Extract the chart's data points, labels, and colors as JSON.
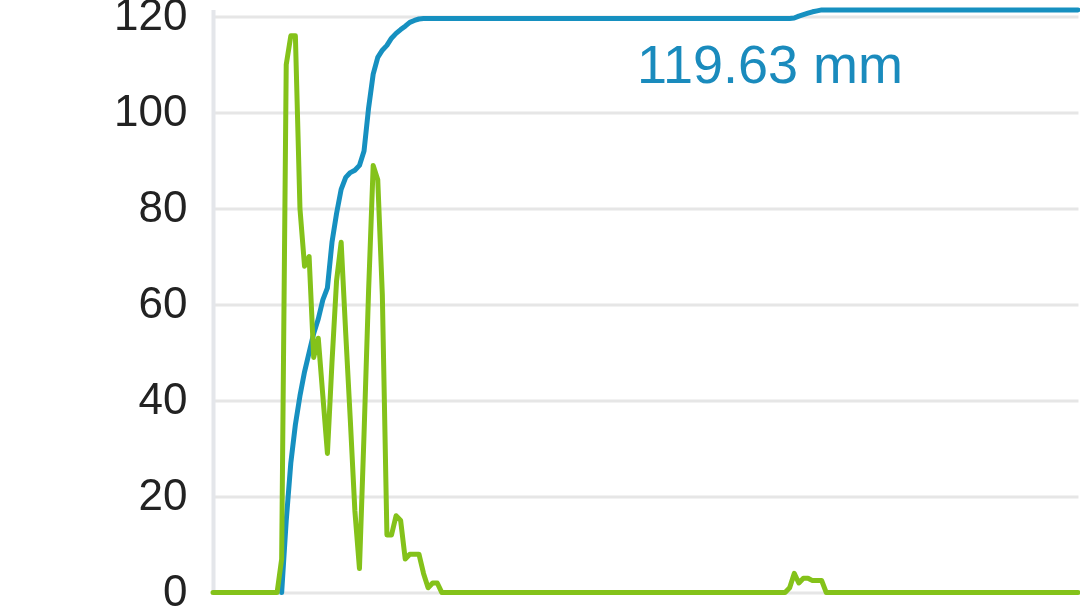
{
  "chart_data": {
    "type": "line",
    "categories": [
      null,
      null,
      null,
      null,
      null,
      null,
      null,
      null,
      null,
      null,
      null,
      null,
      null,
      null,
      null,
      null,
      null,
      null,
      null,
      null,
      null,
      null,
      null,
      null,
      null,
      null,
      null,
      null,
      null,
      null,
      null,
      null,
      null,
      null,
      null,
      null,
      null,
      null,
      null,
      null,
      null,
      null,
      null,
      null,
      null,
      null,
      null,
      null,
      null,
      null,
      null,
      null,
      null,
      null,
      null,
      null,
      null,
      null,
      null,
      null,
      null,
      null,
      null,
      null,
      null,
      null,
      null,
      null,
      null,
      null,
      null,
      null,
      null,
      null,
      null,
      null,
      null,
      null,
      null,
      null,
      null,
      null,
      null,
      null,
      null,
      null,
      null,
      null,
      null,
      null,
      null,
      null,
      null,
      null,
      null,
      null,
      null,
      null,
      null,
      null,
      null,
      null,
      null,
      null,
      null,
      null,
      null,
      null,
      null,
      null,
      null,
      null,
      null,
      null,
      null,
      null,
      null,
      null,
      null,
      null,
      null,
      null,
      null,
      null,
      null,
      null,
      null,
      null,
      null,
      null,
      null,
      null,
      null,
      null,
      null,
      null,
      null,
      null,
      null,
      null,
      null,
      null,
      null,
      null,
      null,
      null,
      null,
      null,
      null,
      null,
      null,
      null,
      null,
      null,
      null,
      null,
      null,
      null,
      null,
      null,
      null,
      null,
      null,
      null,
      null,
      null,
      null,
      null,
      null,
      null,
      null,
      null,
      null,
      null,
      null,
      null,
      null,
      null,
      null,
      null,
      null,
      null,
      null,
      null,
      null,
      null,
      null,
      null,
      null,
      null
    ],
    "series": [
      {
        "color": "#1690c0",
        "values": [
          null,
          null,
          null,
          null,
          null,
          null,
          null,
          null,
          null,
          null,
          null,
          null,
          null,
          null,
          null,
          0,
          15,
          27,
          35,
          41,
          46,
          50,
          54,
          57,
          61,
          63.5,
          73,
          79,
          84,
          86.5,
          87.5,
          88,
          89,
          92,
          101,
          108,
          111.5,
          113,
          114,
          115.5,
          116.5,
          117.3,
          118,
          118.8,
          119.2,
          119.5,
          119.6,
          119.6,
          119.6,
          119.6,
          119.6,
          119.6,
          119.6,
          119.6,
          119.6,
          119.6,
          119.6,
          119.6,
          119.6,
          119.6,
          119.6,
          119.6,
          119.6,
          119.6,
          119.6,
          119.6,
          119.6,
          119.6,
          119.6,
          119.6,
          119.6,
          119.6,
          119.6,
          119.6,
          119.6,
          119.6,
          119.6,
          119.6,
          119.6,
          119.6,
          119.6,
          119.6,
          119.6,
          119.6,
          119.6,
          119.6,
          119.6,
          119.6,
          119.6,
          119.6,
          119.6,
          119.6,
          119.6,
          119.6,
          119.6,
          119.6,
          119.6,
          119.6,
          119.6,
          119.6,
          119.6,
          119.6,
          119.6,
          119.6,
          119.6,
          119.6,
          119.6,
          119.6,
          119.6,
          119.6,
          119.6,
          119.6,
          119.6,
          119.6,
          119.6,
          119.6,
          119.6,
          119.6,
          119.6,
          119.6,
          119.6,
          119.6,
          119.6,
          119.6,
          119.6,
          119.6,
          119.6,
          119.7,
          120.1,
          120.4,
          120.7,
          121,
          121.2,
          121.4,
          121.4,
          121.4,
          121.4,
          121.4,
          121.4,
          121.4,
          121.4,
          121.4,
          121.4,
          121.4,
          121.4,
          121.4,
          121.4,
          121.4,
          121.4,
          121.4,
          121.4,
          121.4,
          121.4,
          121.4,
          121.4,
          121.4,
          121.4,
          121.4,
          121.4,
          121.4,
          121.4,
          121.4,
          121.4,
          121.4,
          121.4,
          121.4,
          121.4,
          121.4,
          121.4,
          121.4,
          121.4,
          121.4,
          121.4,
          121.4,
          121.4,
          121.4,
          121.4,
          121.4,
          121.4,
          121.4,
          121.4,
          121.4,
          121.4,
          121.4,
          121.4,
          121.4,
          121.4,
          121.4,
          121.4,
          121.4
        ]
      },
      {
        "color": "#84c21a",
        "values": [
          0,
          0,
          0,
          0,
          0,
          0,
          0,
          0,
          0,
          0,
          0,
          0,
          0,
          0,
          0,
          7,
          110,
          116,
          116,
          80,
          68,
          70,
          49,
          53,
          41,
          29,
          48,
          65,
          73,
          54,
          36,
          17,
          5,
          33,
          63,
          89,
          86,
          62,
          12,
          12,
          16,
          15,
          7,
          8,
          8,
          8,
          4,
          1,
          2,
          2,
          0,
          0,
          0,
          0,
          0,
          0,
          0,
          0,
          0,
          0,
          0,
          0,
          0,
          0,
          0,
          0,
          0,
          0,
          0,
          0,
          0,
          0,
          0,
          0,
          0,
          0,
          0,
          0,
          0,
          0,
          0,
          0,
          0,
          0,
          0,
          0,
          0,
          0,
          0,
          0,
          0,
          0,
          0,
          0,
          0,
          0,
          0,
          0,
          0,
          0,
          0,
          0,
          0,
          0,
          0,
          0,
          0,
          0,
          0,
          0,
          0,
          0,
          0,
          0,
          0,
          0,
          0,
          0,
          0,
          0,
          0,
          0,
          0,
          0,
          0,
          0,
          1,
          4,
          2,
          3,
          3,
          2.5,
          2.5,
          2.5,
          0,
          0,
          0,
          0,
          0,
          0,
          0,
          0,
          0,
          0,
          0,
          0,
          0,
          0,
          0,
          0,
          0,
          0,
          0,
          0,
          0,
          0,
          0,
          0,
          0,
          0,
          0,
          0,
          0,
          0,
          0,
          0,
          0,
          0,
          0,
          0,
          0,
          0,
          0,
          0,
          0,
          0,
          0,
          0,
          0,
          0,
          0,
          0,
          0,
          0,
          0,
          0,
          0,
          0,
          0,
          0
        ]
      }
    ],
    "ylim": [
      0,
      121.5
    ],
    "yticks": [
      0,
      20,
      40,
      60,
      80,
      100,
      120
    ],
    "grid": "y",
    "tick_labels": "y",
    "annotations": [
      "119.63 mm"
    ]
  }
}
